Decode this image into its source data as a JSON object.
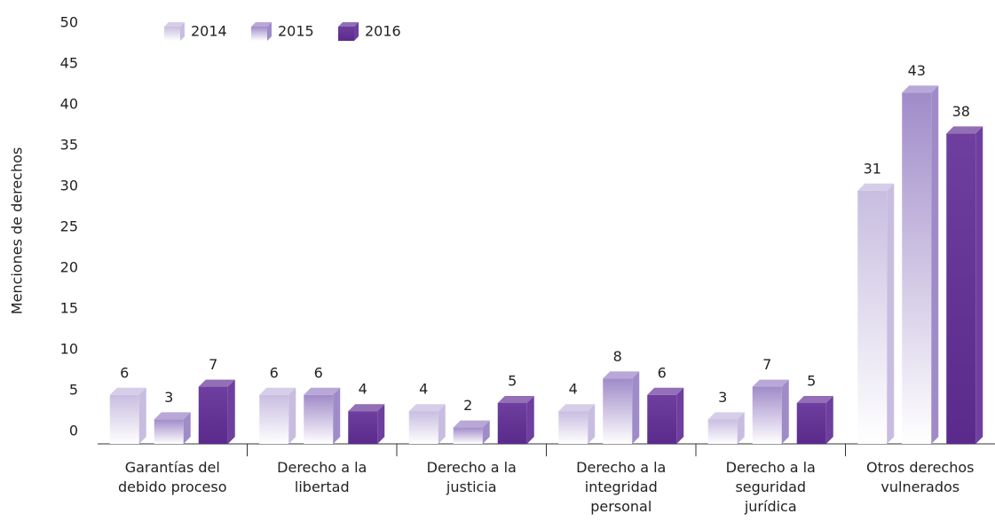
{
  "chart_data": {
    "type": "bar3d",
    "y_axis_label": "Menciones de derechos",
    "categories": [
      "Garantías del debido proceso",
      "Derecho a la libertad",
      "Derecho a la justicia",
      "Derecho a la integridad personal",
      "Derecho a la seguridad jurídica",
      "Otros derechos vulnerados"
    ],
    "series": [
      {
        "name": "2014",
        "color": "#c8bde0",
        "values": [
          6,
          6,
          4,
          4,
          3,
          31
        ]
      },
      {
        "name": "2015",
        "color": "#a08bc9",
        "values": [
          3,
          6,
          2,
          8,
          7,
          43
        ]
      },
      {
        "name": "2016",
        "color": "#6e3f9e",
        "values": [
          7,
          4,
          5,
          6,
          5,
          38
        ]
      }
    ],
    "ylim": [
      0,
      50
    ],
    "yticks": [
      0,
      5,
      10,
      15,
      20,
      25,
      30,
      35,
      40,
      45,
      50
    ],
    "legend": "top-left"
  }
}
